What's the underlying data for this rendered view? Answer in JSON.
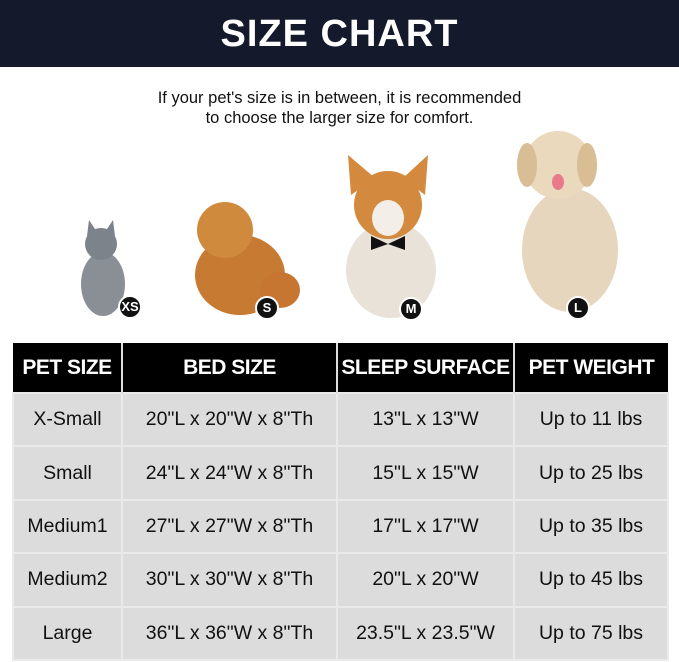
{
  "title": "SIZE CHART",
  "note": [
    "If your pet's size is in between, it is recommended",
    "to choose the larger size for comfort."
  ],
  "pets": [
    {
      "badge": "XS",
      "animal": "cat"
    },
    {
      "badge": "S",
      "animal": "pomeranian"
    },
    {
      "badge": "M",
      "animal": "corgi"
    },
    {
      "badge": "L",
      "animal": "golden retriever"
    }
  ],
  "table": {
    "headers": [
      "PET SIZE",
      "BED SIZE",
      "SLEEP SURFACE",
      "PET WEIGHT"
    ],
    "rows": [
      [
        "X-Small",
        "20\"L x 20\"W x 8\"Th",
        "13\"L x 13\"W",
        "Up to 11 lbs"
      ],
      [
        "Small",
        "24\"L x 24\"W x 8\"Th",
        "15\"L x 15\"W",
        "Up to 25 lbs"
      ],
      [
        "Medium1",
        "27\"L x 27\"W x 8\"Th",
        "17\"L x 17\"W",
        "Up to 35 lbs"
      ],
      [
        "Medium2",
        "30\"L x 30\"W x 8\"Th",
        "20\"L x 20\"W",
        "Up to 45 lbs"
      ],
      [
        "Large",
        "36\"L x 36\"W x 8\"Th",
        "23.5\"L x 23.5\"W",
        "Up to 75 lbs"
      ]
    ]
  },
  "colors": {
    "title_bg": "#141a2c",
    "header_bg": "#000000",
    "cell_bg": "#dcdcdc"
  }
}
